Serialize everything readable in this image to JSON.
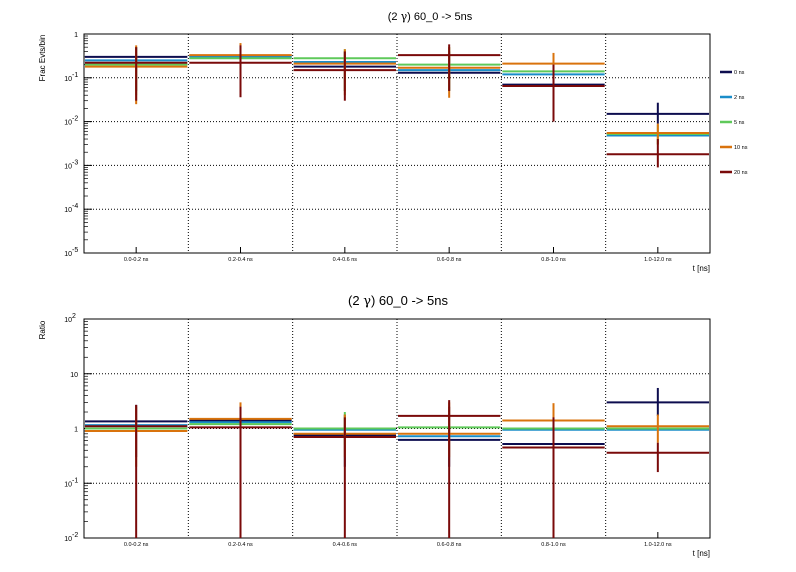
{
  "colors": {
    "0 ns": "#0d0d4f",
    "2 ns": "#1a8dc9",
    "5 ns": "#5fc95a",
    "10 ns": "#d9730d",
    "20 ns": "#7a0a0a"
  },
  "chart_data": [
    {
      "type": "step-errorbar",
      "title_prefix": "(2 ",
      "title_symbol": "γ",
      "title_suffix": ") 60_0 -> 5ns",
      "ylabel": "Frac Evts/bin",
      "xlabel": "t [ns]",
      "yscale": "log",
      "ylim": [
        1e-05,
        1
      ],
      "yticks": [
        {
          "value": 1,
          "base": "1",
          "exp": ""
        },
        {
          "value": 0.1,
          "base": "10",
          "exp": "-1"
        },
        {
          "value": 0.01,
          "base": "10",
          "exp": "-2"
        },
        {
          "value": 0.001,
          "base": "10",
          "exp": "-3"
        },
        {
          "value": 0.0001,
          "base": "10",
          "exp": "-4"
        },
        {
          "value": 1e-05,
          "base": "10",
          "exp": "-5"
        }
      ],
      "categories": [
        "0.0-0.2 ns",
        "0.2-0.4 ns",
        "0.4-0.6 ns",
        "0.6-0.8 ns",
        "0.8-1.0 ns",
        "1.0-12.0 ns"
      ],
      "legend": [
        "0 ns",
        "2 ns",
        "5 ns",
        "10 ns",
        "20 ns"
      ],
      "series": [
        {
          "name": "0 ns",
          "values": [
            0.3,
            0.32,
            0.18,
            0.13,
            0.07,
            0.015
          ],
          "err_hi": [
            0.5,
            0.6,
            0.4,
            0.4,
            0.2,
            0.027
          ],
          "err_lo": [
            0.05,
            0.05,
            0.05,
            0.05,
            0.03,
            0.009
          ]
        },
        {
          "name": "2 ns",
          "values": [
            0.25,
            0.3,
            0.23,
            0.15,
            0.12,
            0.0048
          ],
          "err_hi": null,
          "err_lo": null
        },
        {
          "name": "5 ns",
          "values": [
            0.2,
            0.28,
            0.28,
            0.2,
            0.14,
            0.0052
          ],
          "err_hi": [
            0.5,
            0.55,
            0.45,
            0.5,
            0.3,
            0.0085
          ],
          "err_lo": [
            0.04,
            0.05,
            0.05,
            0.05,
            0.03,
            0.003
          ]
        },
        {
          "name": "10 ns",
          "values": [
            0.18,
            0.33,
            0.21,
            0.17,
            0.21,
            0.0055
          ],
          "err_hi": [
            0.55,
            0.62,
            0.45,
            0.5,
            0.37,
            0.009
          ],
          "err_lo": [
            0.025,
            0.04,
            0.04,
            0.035,
            0.04,
            0.003
          ]
        },
        {
          "name": "20 ns",
          "values": [
            0.22,
            0.22,
            0.15,
            0.33,
            0.065,
            0.0018
          ],
          "err_hi": [
            0.5,
            0.55,
            0.4,
            0.58,
            0.2,
            0.004
          ],
          "err_lo": [
            0.03,
            0.036,
            0.03,
            0.05,
            0.01,
            0.0009
          ]
        }
      ]
    },
    {
      "type": "step-errorbar",
      "title_prefix": "(2 ",
      "title_symbol": "γ",
      "title_suffix": ") 60_0 -> 5ns",
      "ylabel": "Ratio",
      "xlabel": "t [ns]",
      "yscale": "log",
      "ylim": [
        0.01,
        100
      ],
      "yticks": [
        {
          "value": 100,
          "base": "10",
          "exp": "2"
        },
        {
          "value": 10,
          "base": "10",
          "exp": ""
        },
        {
          "value": 1,
          "base": "1",
          "exp": ""
        },
        {
          "value": 0.1,
          "base": "10",
          "exp": "-1"
        },
        {
          "value": 0.01,
          "base": "10",
          "exp": "-2"
        }
      ],
      "categories": [
        "0.0-0.2 ns",
        "0.2-0.4 ns",
        "0.4-0.6 ns",
        "0.6-0.8 ns",
        "0.8-1.0 ns",
        "1.0-12.0 ns"
      ],
      "series": [
        {
          "name": "0 ns",
          "values": [
            1.35,
            1.4,
            0.75,
            0.62,
            0.52,
            3.0
          ],
          "err_hi": [
            2.7,
            2.5,
            1.8,
            2.5,
            1.2,
            5.5
          ],
          "err_lo": [
            0.3,
            0.4,
            0.2,
            0.2,
            0.1,
            1.7
          ]
        },
        {
          "name": "2 ns",
          "values": [
            1.15,
            1.3,
            0.95,
            0.72,
            0.95,
            0.95
          ],
          "err_hi": null,
          "err_lo": null
        },
        {
          "name": "5 ns",
          "values": [
            1.0,
            1.2,
            1.0,
            1.05,
            1.0,
            1.0
          ],
          "err_hi": [
            null,
            null,
            2.0,
            null,
            null,
            null
          ],
          "err_lo": [
            null,
            null,
            0.5,
            null,
            null,
            null
          ]
        },
        {
          "name": "10 ns",
          "values": [
            0.9,
            1.5,
            0.8,
            0.8,
            1.4,
            1.1
          ],
          "err_hi": [
            2.5,
            3.0,
            1.8,
            3.0,
            2.9,
            1.8
          ],
          "err_lo": [
            0.2,
            0.3,
            0.3,
            0.3,
            0.3,
            0.55
          ]
        },
        {
          "name": "20 ns",
          "values": [
            1.1,
            1.05,
            0.7,
            1.7,
            0.45,
            0.36
          ],
          "err_hi": [
            2.7,
            2.5,
            1.6,
            3.3,
            1.6,
            0.55
          ],
          "err_lo": [
            0.01,
            0.01,
            0.01,
            0.01,
            0.01,
            0.16
          ]
        }
      ]
    }
  ]
}
